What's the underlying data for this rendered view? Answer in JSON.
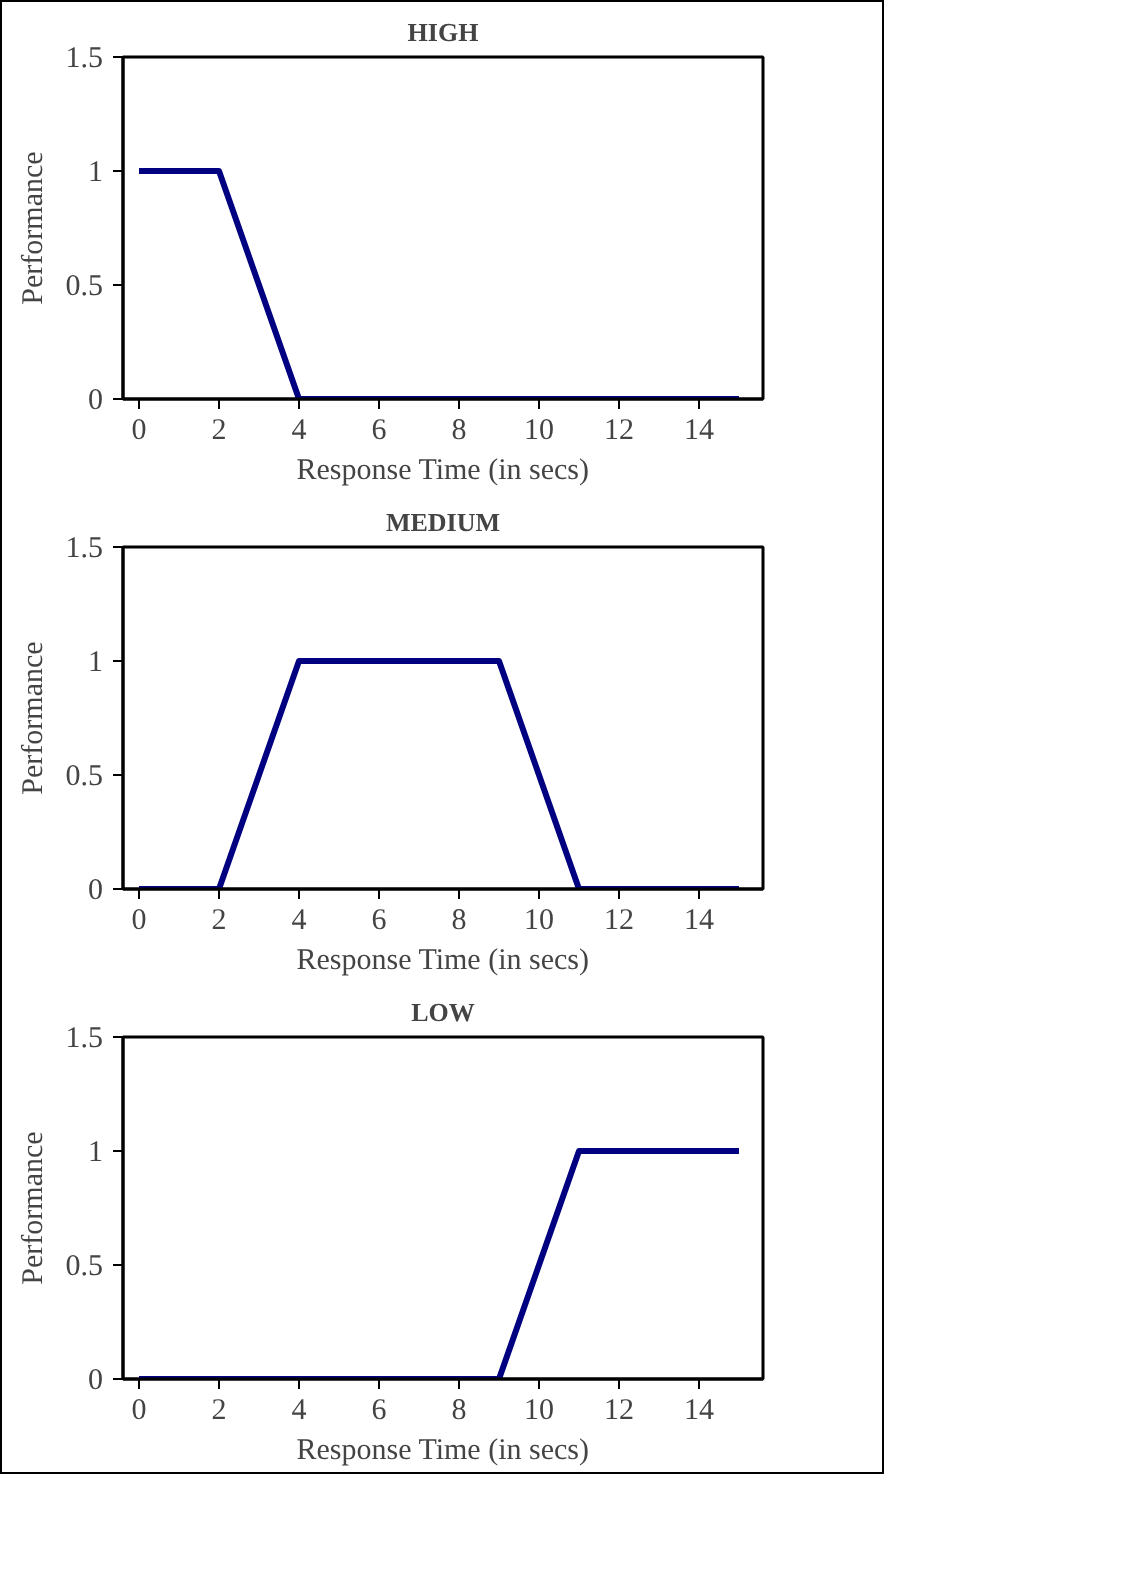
{
  "chart_data": [
    {
      "type": "line",
      "title": "HIGH",
      "xlabel": "Response Time (in secs)",
      "ylabel": "Performance",
      "x": [
        0,
        1,
        2,
        3,
        4,
        5,
        6,
        7,
        8,
        9,
        10,
        11,
        12,
        13,
        14,
        15
      ],
      "series": [
        {
          "color": "#000080",
          "values": [
            1,
            1,
            1,
            0.5,
            0,
            0,
            0,
            0,
            0,
            0,
            0,
            0,
            0,
            0,
            0,
            0
          ]
        }
      ],
      "xlim": [
        -0.4,
        15.6
      ],
      "ylim": [
        0,
        1.5
      ],
      "xticks": [
        0,
        2,
        4,
        6,
        8,
        10,
        12,
        14
      ],
      "yticks": [
        0,
        0.5,
        1,
        1.5
      ]
    },
    {
      "type": "line",
      "title": "MEDIUM",
      "xlabel": "Response Time (in secs)",
      "ylabel": "Performance",
      "x": [
        0,
        1,
        2,
        3,
        4,
        5,
        6,
        7,
        8,
        9,
        10,
        11,
        12,
        13,
        14,
        15
      ],
      "series": [
        {
          "color": "#000080",
          "values": [
            0,
            0,
            0,
            0.5,
            1,
            1,
            1,
            1,
            1,
            1,
            0.5,
            0,
            0,
            0,
            0,
            0
          ]
        }
      ],
      "xlim": [
        -0.4,
        15.6
      ],
      "ylim": [
        0,
        1.5
      ],
      "xticks": [
        0,
        2,
        4,
        6,
        8,
        10,
        12,
        14
      ],
      "yticks": [
        0,
        0.5,
        1,
        1.5
      ]
    },
    {
      "type": "line",
      "title": "LOW",
      "xlabel": "Response Time (in secs)",
      "ylabel": "Performance",
      "x": [
        0,
        1,
        2,
        3,
        4,
        5,
        6,
        7,
        8,
        9,
        10,
        11,
        12,
        13,
        14,
        15
      ],
      "series": [
        {
          "color": "#000080",
          "values": [
            0,
            0,
            0,
            0,
            0,
            0,
            0,
            0,
            0,
            0,
            0.5,
            1,
            1,
            1,
            1,
            1
          ]
        }
      ],
      "xlim": [
        -0.4,
        15.6
      ],
      "ylim": [
        0,
        1.5
      ],
      "xticks": [
        0,
        2,
        4,
        6,
        8,
        10,
        12,
        14
      ],
      "yticks": [
        0,
        0.5,
        1,
        1.5
      ]
    }
  ]
}
